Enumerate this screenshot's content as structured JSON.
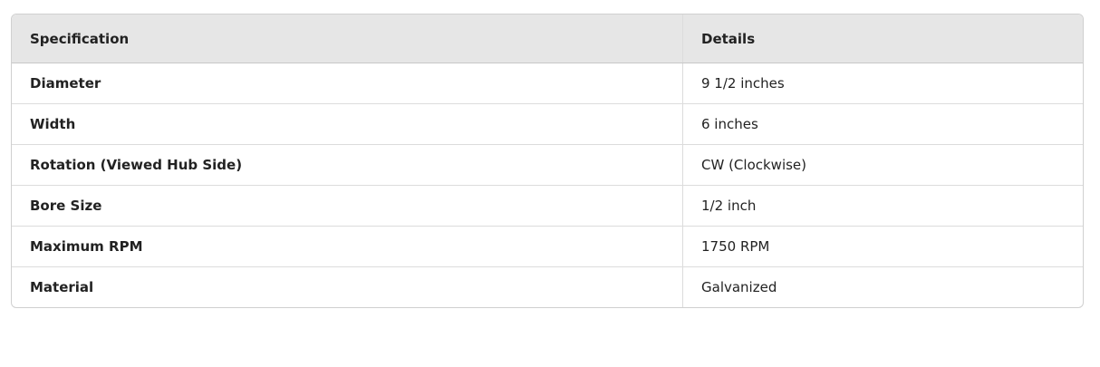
{
  "table": {
    "headers": [
      "Specification",
      "Details"
    ],
    "rows": [
      [
        "Diameter",
        "9 1/2 inches"
      ],
      [
        "Width",
        "6 inches"
      ],
      [
        "Rotation (Viewed Hub Side)",
        "CW (Clockwise)"
      ],
      [
        "Bore Size",
        "1/2 inch"
      ],
      [
        "Maximum RPM",
        "1750 RPM"
      ],
      [
        "Material",
        "Galvanized"
      ]
    ]
  }
}
